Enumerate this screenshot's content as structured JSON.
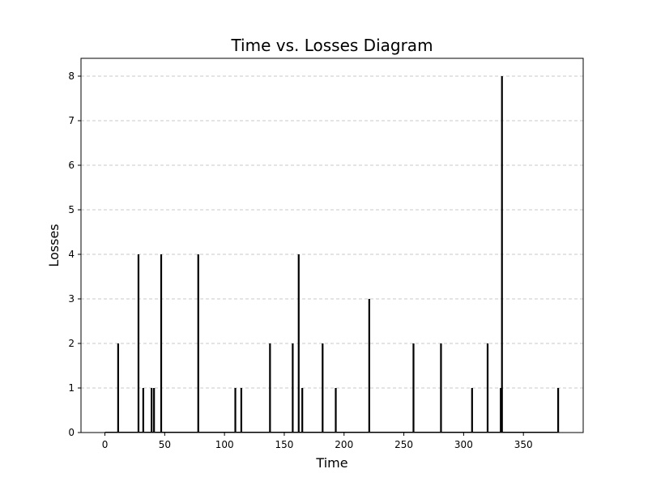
{
  "chart_data": {
    "type": "bar",
    "title": "Time vs. Losses Diagram",
    "xlabel": "Time",
    "ylabel": "Losses",
    "xlim": [
      -20,
      400
    ],
    "ylim": [
      0,
      8.4
    ],
    "xticks": [
      0,
      50,
      100,
      150,
      200,
      250,
      300,
      350
    ],
    "yticks": [
      0,
      1,
      2,
      3,
      4,
      5,
      6,
      7,
      8
    ],
    "grid": {
      "y": true,
      "x": false,
      "style": "dashed"
    },
    "bar_color": "#000000",
    "grid_color": "#c8c8c8",
    "points": [
      {
        "x": 11,
        "y": 2
      },
      {
        "x": 28,
        "y": 4
      },
      {
        "x": 32,
        "y": 1
      },
      {
        "x": 39,
        "y": 1
      },
      {
        "x": 41,
        "y": 1
      },
      {
        "x": 47,
        "y": 4
      },
      {
        "x": 78,
        "y": 4
      },
      {
        "x": 109,
        "y": 1
      },
      {
        "x": 114,
        "y": 1
      },
      {
        "x": 138,
        "y": 2
      },
      {
        "x": 157,
        "y": 2
      },
      {
        "x": 162,
        "y": 4
      },
      {
        "x": 165,
        "y": 1
      },
      {
        "x": 182,
        "y": 2
      },
      {
        "x": 193,
        "y": 1
      },
      {
        "x": 221,
        "y": 3
      },
      {
        "x": 258,
        "y": 2
      },
      {
        "x": 281,
        "y": 2
      },
      {
        "x": 307,
        "y": 1
      },
      {
        "x": 320,
        "y": 2
      },
      {
        "x": 331,
        "y": 1
      },
      {
        "x": 332,
        "y": 8
      },
      {
        "x": 379,
        "y": 1
      }
    ]
  }
}
